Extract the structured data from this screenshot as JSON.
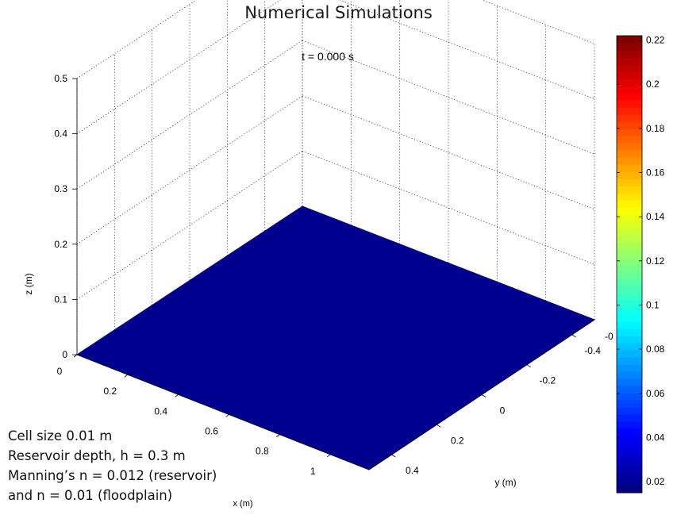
{
  "slide_title": "Numerical Simulations",
  "notes": [
    "Cell size 0.01 m",
    "Reservoir depth, h = 0.3 m",
    "Manning’s n = 0.012 (reservoir)",
    "and n = 0.01 (floodplain)"
  ],
  "chart_data": {
    "type": "surface3d",
    "title": "t = 0.000 s",
    "xlabel": "x (m)",
    "ylabel": "y (m)",
    "zlabel": "z (m)",
    "x_ticks": [
      "0",
      "0.2",
      "0.4",
      "0.6",
      "0.8",
      "1"
    ],
    "y_ticks": [
      "-0.4",
      "-0.2",
      "0",
      "0.2",
      "0.4"
    ],
    "y_tick_partial": "-0",
    "z_ticks": [
      "0",
      "0.1",
      "0.2",
      "0.3",
      "0.4",
      "0.5"
    ],
    "zlim": [
      0,
      0.5
    ],
    "surface_value": 0,
    "surface_color": "#00008f",
    "grid": true,
    "colorbar": {
      "colormap": "jet",
      "range": [
        0.015,
        0.222
      ],
      "ticks": [
        "0.02",
        "0.04",
        "0.06",
        "0.08",
        "0.1",
        "0.12",
        "0.14",
        "0.16",
        "0.18",
        "0.2",
        "0.22"
      ]
    }
  }
}
